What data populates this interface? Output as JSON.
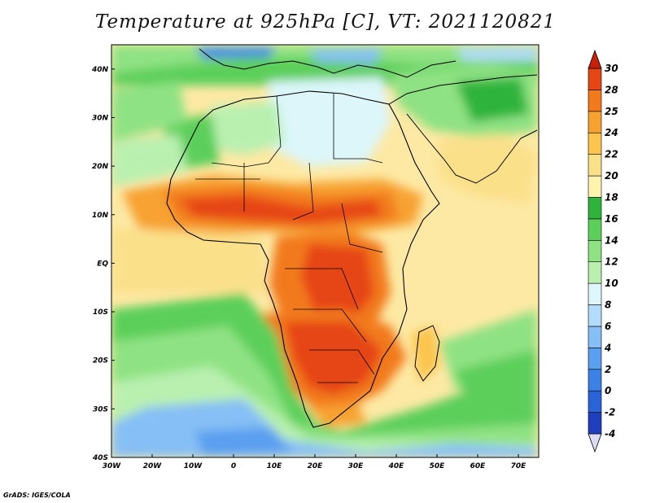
{
  "title": "Temperature at 925hPa [C], VT: 2021120821",
  "credit": "GrADS: IGES/COLA",
  "map": {
    "projection": "lat-lon",
    "lon_range": [
      -30,
      75
    ],
    "lat_range": [
      -40,
      45
    ],
    "lon_ticks": [
      {
        "value": -30,
        "label": "30W"
      },
      {
        "value": -20,
        "label": "20W"
      },
      {
        "value": -10,
        "label": "10W"
      },
      {
        "value": 0,
        "label": "0"
      },
      {
        "value": 10,
        "label": "10E"
      },
      {
        "value": 20,
        "label": "20E"
      },
      {
        "value": 30,
        "label": "30E"
      },
      {
        "value": 40,
        "label": "40E"
      },
      {
        "value": 50,
        "label": "50E"
      },
      {
        "value": 60,
        "label": "60E"
      },
      {
        "value": 70,
        "label": "70E"
      }
    ],
    "lat_ticks": [
      {
        "value": 40,
        "label": "40N"
      },
      {
        "value": 30,
        "label": "30N"
      },
      {
        "value": 20,
        "label": "20N"
      },
      {
        "value": 10,
        "label": "10N"
      },
      {
        "value": 0,
        "label": "EQ"
      },
      {
        "value": -10,
        "label": "10S"
      },
      {
        "value": -20,
        "label": "20S"
      },
      {
        "value": -30,
        "label": "30S"
      },
      {
        "value": -40,
        "label": "40S"
      }
    ]
  },
  "colorbar": {
    "levels": [
      "-4",
      "-2",
      "0",
      "2",
      "4",
      "6",
      "8",
      "10",
      "12",
      "14",
      "16",
      "18",
      "20",
      "22",
      "24",
      "25",
      "28",
      "30"
    ],
    "colors": [
      "#15158f",
      "#1f3fbf",
      "#2a64d9",
      "#3c82e6",
      "#5a9ff0",
      "#86bff5",
      "#b3dbfa",
      "#dcf6fa",
      "#b9f0b0",
      "#8fe283",
      "#5ccf5a",
      "#2eb43c",
      "#fff3b0",
      "#fbe08a",
      "#fbc54e",
      "#f7a230",
      "#f27a1c",
      "#e64514",
      "#c82008"
    ]
  }
}
